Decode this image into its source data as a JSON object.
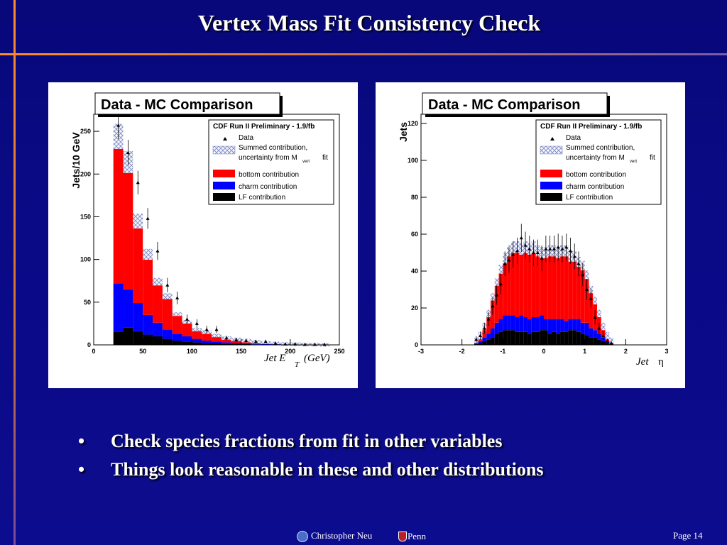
{
  "slide": {
    "title": "Vertex Mass Fit Consistency Check",
    "bullets": [
      "Check species fractions from fit in other variables",
      "Things look reasonable in these and other distributions"
    ],
    "author": "Christopher Neu",
    "institution": "Penn",
    "page_label": "Page 14"
  },
  "colors": {
    "background": "#0a0a86",
    "accent_line": "#ff8a30",
    "bottom": "#ff0000",
    "charm": "#0000ff",
    "lf": "#000000"
  },
  "icons": [
    "university-seal-icon",
    "penn-shield-icon"
  ],
  "chart_data": [
    {
      "type": "bar",
      "title": "Data - MC Comparison",
      "subtitle": "CDF Run II Preliminary - 1.9/fb",
      "xlabel": "Jet E",
      "xlabel_sub": "T",
      "xlabel_unit": "(GeV)",
      "ylabel": "Jets/10 GeV",
      "xlim": [
        0,
        250
      ],
      "ylim": [
        0,
        270
      ],
      "xticks": [
        "0",
        "50",
        "100",
        "150",
        "200",
        "250"
      ],
      "yticks": [
        "0",
        "50",
        "100",
        "150",
        "200",
        "250"
      ],
      "legend": {
        "position": "top-right",
        "entries": [
          "Data",
          "Summed contribution,",
          "uncertainty from M",
          "vert",
          "fit",
          "bottom contribution",
          "charm contribution",
          "LF contribution"
        ]
      },
      "x": [
        25,
        35,
        45,
        55,
        65,
        75,
        85,
        95,
        105,
        115,
        125,
        135,
        145,
        155,
        165,
        175,
        185,
        195,
        205,
        215,
        225,
        235
      ],
      "series": [
        {
          "name": "LF contribution",
          "values": [
            15,
            20,
            16,
            12,
            10,
            7,
            5,
            4,
            3,
            2,
            2,
            1,
            1,
            1,
            0.6,
            0.4,
            0.3,
            0.2,
            0.1,
            0.1,
            0.1,
            0
          ]
        },
        {
          "name": "charm contribution",
          "values": [
            57,
            45,
            33,
            23,
            16,
            11,
            8,
            6,
            4,
            3,
            2,
            2,
            1.5,
            1,
            1,
            0.6,
            0.4,
            0.3,
            0.2,
            0.1,
            0.1,
            0
          ]
        },
        {
          "name": "bottom contribution",
          "values": [
            172,
            149,
            96,
            71,
            48,
            39,
            23,
            17,
            11,
            10,
            7,
            5,
            4,
            3,
            2,
            1.5,
            1,
            0.5,
            0.5,
            0.3,
            0.2,
            0
          ]
        },
        {
          "name": "Data",
          "values": [
            257,
            225,
            190,
            148,
            110,
            70,
            55,
            30,
            25,
            18,
            18,
            8,
            6,
            5,
            4,
            4,
            2,
            1,
            1,
            0.5,
            0.5,
            0.5
          ]
        }
      ]
    },
    {
      "type": "bar",
      "title": "Data - MC Comparison",
      "subtitle": "CDF Run II Preliminary - 1.9/fb",
      "xlabel": "Jet",
      "xlabel_symbol": "η",
      "ylabel": "Jets",
      "xlim": [
        -3,
        3
      ],
      "ylim": [
        0,
        125
      ],
      "xticks": [
        "-3",
        "-2",
        "-1",
        "0",
        "1",
        "2",
        "3"
      ],
      "yticks": [
        "0",
        "20",
        "40",
        "60",
        "80",
        "100",
        "120"
      ],
      "legend": {
        "position": "top-right",
        "entries": [
          "Data",
          "Summed contribution,",
          "uncertainty from M",
          "vert",
          "fit",
          "bottom contribution",
          "charm contribution",
          "LF contribution"
        ]
      },
      "x": [
        -1.65,
        -1.55,
        -1.45,
        -1.35,
        -1.25,
        -1.15,
        -1.05,
        -0.95,
        -0.85,
        -0.75,
        -0.65,
        -0.55,
        -0.45,
        -0.35,
        -0.25,
        -0.15,
        -0.05,
        0.05,
        0.15,
        0.25,
        0.35,
        0.45,
        0.55,
        0.65,
        0.75,
        0.85,
        0.95,
        1.05,
        1.15,
        1.25,
        1.35,
        1.45,
        1.55,
        1.65
      ],
      "series": [
        {
          "name": "LF contribution",
          "values": [
            0.5,
            1,
            2,
            3,
            4,
            6,
            7,
            8,
            8,
            8,
            7,
            7,
            7,
            6,
            7,
            7,
            8,
            8,
            6,
            7,
            6,
            7,
            7,
            8,
            8,
            7,
            6,
            5,
            4,
            4,
            3,
            2,
            1,
            0.5
          ]
        },
        {
          "name": "charm contribution",
          "values": [
            0.5,
            1,
            2,
            3,
            5,
            6,
            7,
            8,
            8,
            8,
            8,
            9,
            8,
            8,
            8,
            8,
            8,
            6,
            8,
            7,
            8,
            7,
            6,
            6,
            6,
            7,
            6,
            7,
            5,
            4,
            3,
            2,
            1,
            0.5
          ]
        },
        {
          "name": "bottom contribution",
          "values": [
            1,
            3,
            6,
            11,
            17,
            22,
            27,
            31,
            35,
            37,
            38,
            36,
            38,
            38,
            38,
            36,
            34,
            36,
            37,
            37,
            36,
            37,
            38,
            34,
            34,
            31,
            31,
            26,
            21,
            16,
            11,
            6,
            3,
            1
          ]
        },
        {
          "name": "Data",
          "values": [
            3,
            5,
            9,
            14,
            21,
            27,
            33,
            44,
            46,
            49,
            51,
            58,
            54,
            52,
            50,
            50,
            47,
            52,
            52,
            52,
            53,
            52,
            53,
            51,
            48,
            44,
            38,
            30,
            25,
            15,
            9,
            5,
            2,
            1
          ]
        }
      ]
    }
  ]
}
